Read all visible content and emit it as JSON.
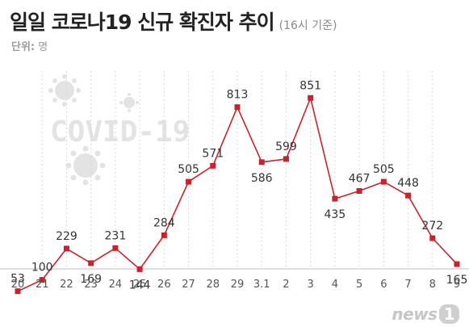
{
  "header": {
    "title": "일일 코로나19 신규 확진자 추이",
    "subtitle": "(16시 기준)",
    "unit_key": "단위:",
    "unit_value": "명"
  },
  "watermark": {
    "text": "COVID-19",
    "icon": "coronavirus-icon"
  },
  "brand": {
    "text": "news",
    "badge": "1"
  },
  "colors": {
    "line": "#c8232c",
    "marker": "#c8232c",
    "text": "#333333",
    "axis_label": "#555555",
    "grid": "#d9d9d9",
    "baseline": "#bfbfbf",
    "watermark": "#e3e3e3"
  },
  "chart_data": {
    "type": "line",
    "categories": [
      "20",
      "21",
      "22",
      "23",
      "24",
      "25",
      "26",
      "27",
      "28",
      "29",
      "3.1",
      "2",
      "3",
      "4",
      "5",
      "6",
      "7",
      "8",
      "9"
    ],
    "values": [
      53,
      100,
      229,
      169,
      231,
      144,
      284,
      505,
      571,
      813,
      586,
      599,
      851,
      435,
      467,
      505,
      448,
      272,
      165
    ],
    "ylim": [
      0,
      1000
    ],
    "grid": "vertical dotted",
    "data_labels": true
  }
}
